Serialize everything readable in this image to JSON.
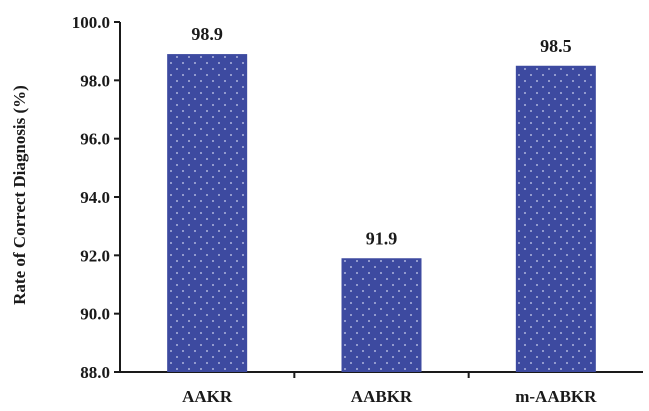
{
  "colors": {
    "bar_fill": "#3d4aa0",
    "bar_dots": "#cfd4ee",
    "axis": "#1a1a1a",
    "text": "#1a1a1a"
  },
  "chart_data": {
    "type": "bar",
    "categories": [
      "AAKR",
      "AABKR",
      "m-AABKR"
    ],
    "values": [
      98.9,
      91.9,
      98.5
    ],
    "data_labels": [
      "98.9",
      "91.9",
      "98.5"
    ],
    "title": "",
    "xlabel": "",
    "ylabel": "Rate of Correct Diagnosis (%)",
    "ylim": [
      88.0,
      100.0
    ],
    "yticks": [
      88.0,
      90.0,
      92.0,
      94.0,
      96.0,
      98.0,
      100.0
    ],
    "ytick_labels": [
      "88.0",
      "90.0",
      "92.0",
      "94.0",
      "96.0",
      "98.0",
      "100.0"
    ],
    "grid": false,
    "legend": "none"
  }
}
